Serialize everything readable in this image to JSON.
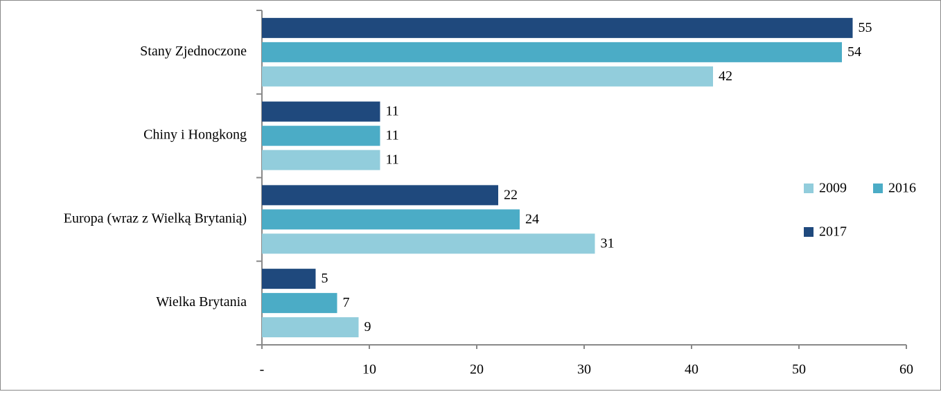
{
  "chart_data": {
    "type": "hbar",
    "categories": [
      "Stany Zjednoczone",
      "Chiny i Hongkong",
      "Europa (wraz z Wielką Brytanią)",
      "Wielka Brytania"
    ],
    "series": [
      {
        "name": "2009",
        "color": "#92cddc",
        "values": [
          42,
          11,
          31,
          9
        ]
      },
      {
        "name": "2016",
        "color": "#4bacc6",
        "values": [
          54,
          11,
          24,
          7
        ]
      },
      {
        "name": "2017",
        "color": "#1f497d",
        "values": [
          55,
          11,
          22,
          5
        ]
      }
    ],
    "xlim": [
      0,
      60
    ],
    "xticks": [
      {
        "value": 0,
        "label": "-"
      },
      10,
      20,
      30,
      40,
      50,
      60
    ],
    "legend": "right"
  }
}
